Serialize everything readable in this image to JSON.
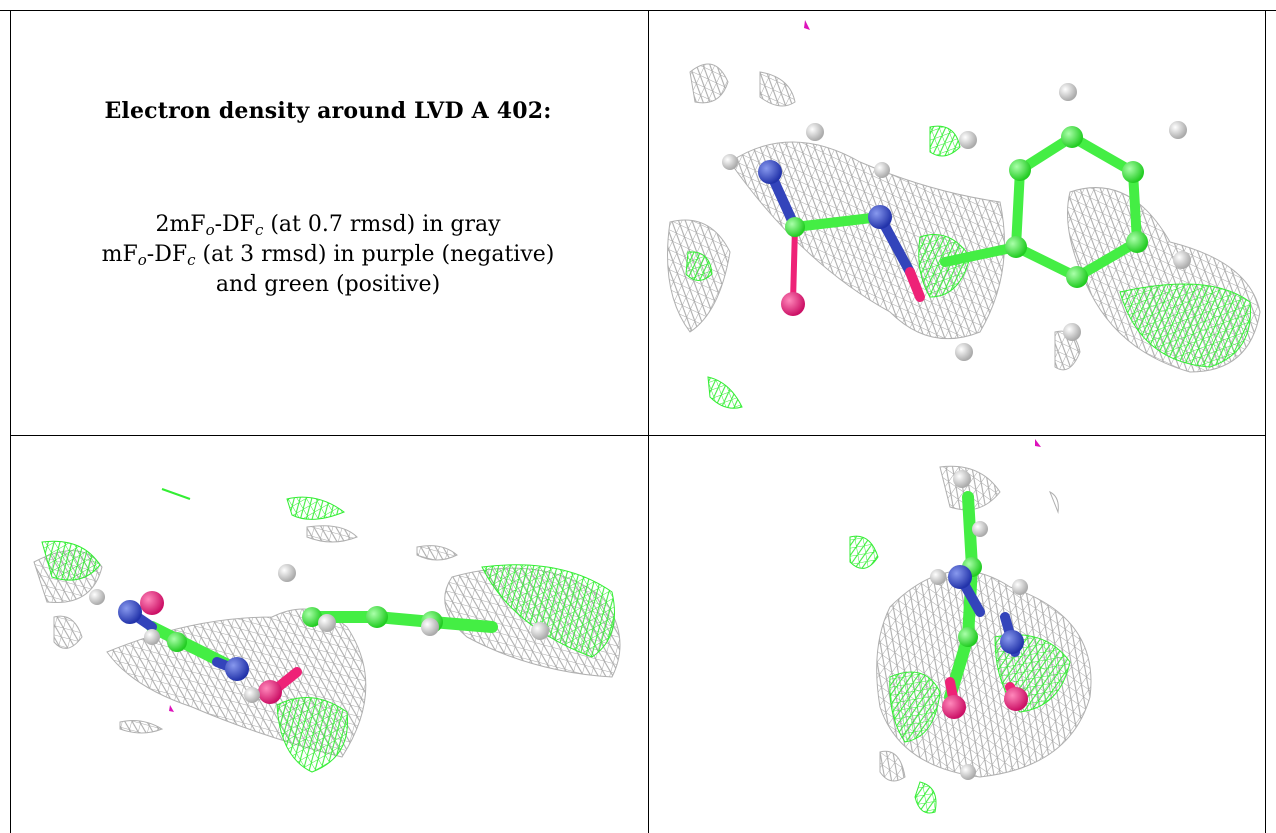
{
  "caption": {
    "title": "Electron density around LVD A 402:",
    "line1": {
      "prefix": "2mF",
      "sub1": "o",
      "mid": "-DF",
      "sub2": "c",
      "suffix": " (at 0.7 rmsd) in gray"
    },
    "line2": {
      "prefix": "mF",
      "sub1": "o",
      "mid": "-DF",
      "sub2": "c",
      "suffix": " (at 3 rmsd) in purple (negative)"
    },
    "line3": "and green (positive)"
  },
  "colors": {
    "mesh_2fofc": "#a8a8a8",
    "mesh_positive": "#33ee33",
    "mesh_negative": "#dd11bb",
    "carbon": "#44ee44",
    "nitrogen": "#3344bb",
    "oxygen": "#ee2277",
    "hydrogen": "#dddddd"
  },
  "panels": [
    {
      "name": "view-top-right"
    },
    {
      "name": "view-bottom-left"
    },
    {
      "name": "view-bottom-right"
    }
  ]
}
